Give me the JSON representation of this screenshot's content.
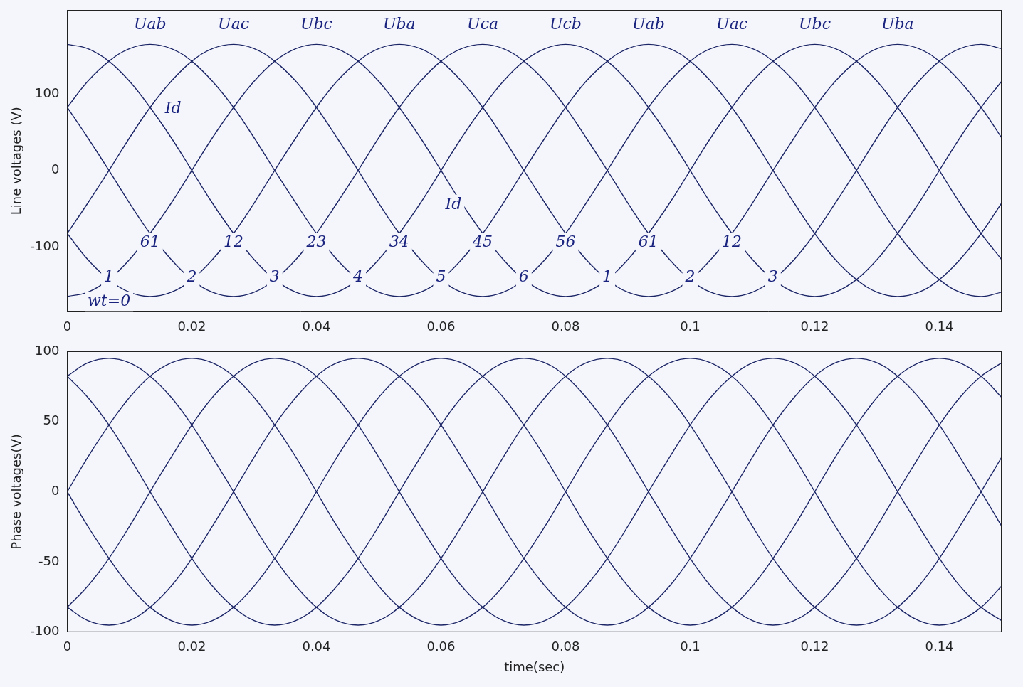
{
  "chart_data": [
    {
      "type": "line",
      "y_label": "Line voltages (V)",
      "x": [
        0,
        0.0033,
        0.0067,
        0.01,
        0.0133,
        0.0167,
        0.02,
        0.0233,
        0.0267,
        0.03,
        0.0333,
        0.0367,
        0.04,
        0.0433,
        0.0467,
        0.05,
        0.0533,
        0.0567,
        0.06,
        0.0633,
        0.0667,
        0.07,
        0.0733,
        0.0767,
        0.08,
        0.0833,
        0.0867,
        0.09,
        0.0933,
        0.0967,
        0.1,
        0.1033,
        0.1067,
        0.11,
        0.1133,
        0.1167,
        0.12,
        0.1233,
        0.1267,
        0.13,
        0.1333,
        0.1367,
        0.14,
        0.1433,
        0.1467,
        0.15
      ],
      "series": [
        {
          "color": "#1c2566",
          "values": [
            82.5,
            116.7,
            142.9,
            159.4,
            165,
            159.4,
            142.9,
            116.7,
            82.5,
            42.7,
            0,
            -42.7,
            -82.5,
            -116.7,
            -142.9,
            -159.4,
            -165,
            -159.4,
            -142.9,
            -116.7,
            -82.5,
            -42.7,
            0,
            42.7,
            82.5,
            116.7,
            142.9,
            159.4,
            165,
            159.4,
            142.9,
            116.7,
            82.5,
            42.7,
            0,
            -42.7,
            -82.5,
            -116.7,
            -142.9,
            -159.4,
            -165,
            -159.4,
            -142.9,
            -116.7,
            -82.5,
            -42.7
          ]
        },
        {
          "color": "#1c2566",
          "values": [
            -82.5,
            -42.7,
            0,
            42.7,
            82.5,
            116.7,
            142.9,
            159.4,
            165,
            159.4,
            142.9,
            116.7,
            82.5,
            42.7,
            0,
            -42.7,
            -82.5,
            -116.7,
            -142.9,
            -159.4,
            -165,
            -159.4,
            -142.9,
            -116.7,
            -82.5,
            -42.7,
            0,
            42.7,
            82.5,
            116.7,
            142.9,
            159.4,
            165,
            159.4,
            142.9,
            116.7,
            82.5,
            42.7,
            0,
            -42.7,
            -82.5,
            -116.7,
            -142.9,
            -159.4,
            -165,
            -159.4
          ]
        },
        {
          "color": "#1c2566",
          "values": [
            -165,
            -159.4,
            -142.9,
            -116.7,
            -82.5,
            -42.7,
            0,
            42.7,
            82.5,
            116.7,
            142.9,
            159.4,
            165,
            159.4,
            142.9,
            116.7,
            82.5,
            42.7,
            0,
            -42.7,
            -82.5,
            -116.7,
            -142.9,
            -159.4,
            -165,
            -159.4,
            -142.9,
            -116.7,
            -82.5,
            -42.7,
            0,
            42.7,
            82.5,
            116.7,
            142.9,
            159.4,
            165,
            159.4,
            142.9,
            116.7,
            82.5,
            42.7,
            0,
            -42.7,
            -82.5,
            -116.7
          ]
        },
        {
          "color": "#1c2566",
          "values": [
            -82.5,
            -116.7,
            -142.9,
            -159.4,
            -165,
            -159.4,
            -142.9,
            -116.7,
            -82.5,
            -42.7,
            0,
            42.7,
            82.5,
            116.7,
            142.9,
            159.4,
            165,
            159.4,
            142.9,
            116.7,
            82.5,
            42.7,
            0,
            -42.7,
            -82.5,
            -116.7,
            -142.9,
            -159.4,
            -165,
            -159.4,
            -142.9,
            -116.7,
            -82.5,
            -42.7,
            0,
            42.7,
            82.5,
            116.7,
            142.9,
            159.4,
            165,
            159.4,
            142.9,
            116.7,
            82.5,
            42.7
          ]
        },
        {
          "color": "#1c2566",
          "values": [
            82.5,
            42.7,
            0,
            -42.7,
            -82.5,
            -116.7,
            -142.9,
            -159.4,
            -165,
            -159.4,
            -142.9,
            -116.7,
            -82.5,
            -42.7,
            0,
            42.7,
            82.5,
            116.7,
            142.9,
            159.4,
            165,
            159.4,
            142.9,
            116.7,
            82.5,
            42.7,
            0,
            -42.7,
            -82.5,
            -116.7,
            -142.9,
            -159.4,
            -165,
            -159.4,
            -142.9,
            -116.7,
            -82.5,
            -42.7,
            0,
            42.7,
            82.5,
            116.7,
            142.9,
            159.4,
            165,
            159.4
          ]
        },
        {
          "color": "#1c2566",
          "values": [
            165,
            159.4,
            142.9,
            116.7,
            82.5,
            42.7,
            0,
            -42.7,
            -82.5,
            -116.7,
            -142.9,
            -159.4,
            -165,
            -159.4,
            -142.9,
            -116.7,
            -82.5,
            -42.7,
            0,
            42.7,
            82.5,
            116.7,
            142.9,
            159.4,
            165,
            159.4,
            142.9,
            116.7,
            82.5,
            42.7,
            0,
            -42.7,
            -82.5,
            -116.7,
            -142.9,
            -159.4,
            -165,
            -159.4,
            -142.9,
            -116.7,
            -82.5,
            -42.7,
            0,
            42.7,
            82.5,
            116.7
          ]
        }
      ],
      "xlim": [
        0,
        0.15
      ],
      "xticks": [
        0,
        0.02,
        0.04,
        0.06,
        0.08,
        0.1,
        0.12,
        0.14
      ],
      "ylim": [
        -185,
        210
      ],
      "yticks": [
        -100,
        0,
        100
      ],
      "grid": false,
      "annotations": [
        {
          "text": "Uab",
          "x": 0.0133,
          "y": 190
        },
        {
          "text": "Uac",
          "x": 0.0267,
          "y": 190
        },
        {
          "text": "Ubc",
          "x": 0.04,
          "y": 190
        },
        {
          "text": "Uba",
          "x": 0.0533,
          "y": 190
        },
        {
          "text": "Uca",
          "x": 0.0667,
          "y": 190
        },
        {
          "text": "Ucb",
          "x": 0.08,
          "y": 190
        },
        {
          "text": "Uab",
          "x": 0.0933,
          "y": 190
        },
        {
          "text": "Uac",
          "x": 0.1067,
          "y": 190
        },
        {
          "text": "Ubc",
          "x": 0.12,
          "y": 190
        },
        {
          "text": "Uba",
          "x": 0.1333,
          "y": 190
        },
        {
          "text": "Id",
          "x": 0.017,
          "y": 80
        },
        {
          "text": "Id",
          "x": 0.062,
          "y": -45
        },
        {
          "text": "61",
          "x": 0.0133,
          "y": -95
        },
        {
          "text": "12",
          "x": 0.0267,
          "y": -95
        },
        {
          "text": "23",
          "x": 0.04,
          "y": -95
        },
        {
          "text": "34",
          "x": 0.0533,
          "y": -95
        },
        {
          "text": "45",
          "x": 0.0667,
          "y": -95
        },
        {
          "text": "56",
          "x": 0.08,
          "y": -95
        },
        {
          "text": "61",
          "x": 0.0933,
          "y": -95
        },
        {
          "text": "12",
          "x": 0.1067,
          "y": -95
        },
        {
          "text": "1",
          "x": 0.0067,
          "y": -140
        },
        {
          "text": "2",
          "x": 0.02,
          "y": -140
        },
        {
          "text": "3",
          "x": 0.0333,
          "y": -140
        },
        {
          "text": "4",
          "x": 0.0467,
          "y": -140
        },
        {
          "text": "5",
          "x": 0.06,
          "y": -140
        },
        {
          "text": "6",
          "x": 0.0733,
          "y": -140
        },
        {
          "text": "1",
          "x": 0.0867,
          "y": -140
        },
        {
          "text": "2",
          "x": 0.1,
          "y": -140
        },
        {
          "text": "3",
          "x": 0.1133,
          "y": -140
        },
        {
          "text": "wt=0",
          "x": 0.0067,
          "y": -172
        }
      ]
    },
    {
      "type": "line",
      "y_label": "Phase voltages(V)",
      "x_label": "time(sec)",
      "x": [
        0,
        0.0033,
        0.0067,
        0.01,
        0.0133,
        0.0167,
        0.02,
        0.0233,
        0.0267,
        0.03,
        0.0333,
        0.0367,
        0.04,
        0.0433,
        0.0467,
        0.05,
        0.0533,
        0.0567,
        0.06,
        0.0633,
        0.0667,
        0.07,
        0.0733,
        0.0767,
        0.08,
        0.0833,
        0.0867,
        0.09,
        0.0933,
        0.0967,
        0.1,
        0.1033,
        0.1067,
        0.11,
        0.1133,
        0.1167,
        0.12,
        0.1233,
        0.1267,
        0.13,
        0.1333,
        0.1367,
        0.14,
        0.1433,
        0.1467,
        0.15
      ],
      "series": [
        {
          "color": "#1c2566",
          "values": [
            82.3,
            91.8,
            95,
            91.8,
            82.3,
            67.2,
            47.5,
            24.6,
            0,
            -24.6,
            -47.5,
            -67.2,
            -82.3,
            -91.8,
            -95,
            -91.8,
            -82.3,
            -67.2,
            -47.5,
            -24.6,
            0,
            24.6,
            47.5,
            67.2,
            82.3,
            91.8,
            95,
            91.8,
            82.3,
            67.2,
            47.5,
            24.6,
            0,
            -24.6,
            -47.5,
            -67.2,
            -82.3,
            -91.8,
            -95,
            -91.8,
            -82.3,
            -67.2,
            -47.5,
            -24.6,
            0,
            24.6
          ]
        },
        {
          "color": "#1c2566",
          "values": [
            0,
            24.6,
            47.5,
            67.2,
            82.3,
            91.8,
            95,
            91.8,
            82.3,
            67.2,
            47.5,
            24.6,
            0,
            -24.6,
            -47.5,
            -67.2,
            -82.3,
            -91.8,
            -95,
            -91.8,
            -82.3,
            -67.2,
            -47.5,
            -24.6,
            0,
            24.6,
            47.5,
            67.2,
            82.3,
            91.8,
            95,
            91.8,
            82.3,
            67.2,
            47.5,
            24.6,
            0,
            -24.6,
            -47.5,
            -67.2,
            -82.3,
            -91.8,
            -95,
            -91.8,
            -82.3,
            -67.2
          ]
        },
        {
          "color": "#1c2566",
          "values": [
            -82.3,
            -67.2,
            -47.5,
            -24.6,
            0,
            24.6,
            47.5,
            67.2,
            82.3,
            91.8,
            95,
            91.8,
            82.3,
            67.2,
            47.5,
            24.6,
            0,
            -24.6,
            -47.5,
            -67.2,
            -82.3,
            -91.8,
            -95,
            -91.8,
            -82.3,
            -67.2,
            -47.5,
            -24.6,
            0,
            24.6,
            47.5,
            67.2,
            82.3,
            91.8,
            95,
            91.8,
            82.3,
            67.2,
            47.5,
            24.6,
            0,
            -24.6,
            -47.5,
            -67.2,
            -82.3,
            -91.8
          ]
        },
        {
          "color": "#1c2566",
          "values": [
            -82.3,
            -91.8,
            -95,
            -91.8,
            -82.3,
            -67.2,
            -47.5,
            -24.6,
            0,
            24.6,
            47.5,
            67.2,
            82.3,
            91.8,
            95,
            91.8,
            82.3,
            67.2,
            47.5,
            24.6,
            0,
            -24.6,
            -47.5,
            -67.2,
            -82.3,
            -91.8,
            -95,
            -91.8,
            -82.3,
            -67.2,
            -47.5,
            -24.6,
            0,
            24.6,
            47.5,
            67.2,
            82.3,
            91.8,
            95,
            91.8,
            82.3,
            67.2,
            47.5,
            24.6,
            0,
            -24.6
          ]
        },
        {
          "color": "#1c2566",
          "values": [
            0,
            -24.6,
            -47.5,
            -67.2,
            -82.3,
            -91.8,
            -95,
            -91.8,
            -82.3,
            -67.2,
            -47.5,
            -24.6,
            0,
            24.6,
            47.5,
            67.2,
            82.3,
            91.8,
            95,
            91.8,
            82.3,
            67.2,
            47.5,
            24.6,
            0,
            -24.6,
            -47.5,
            -67.2,
            -82.3,
            -91.8,
            -95,
            -91.8,
            -82.3,
            -67.2,
            -47.5,
            -24.6,
            0,
            24.6,
            47.5,
            67.2,
            82.3,
            91.8,
            95,
            91.8,
            82.3,
            67.2
          ]
        },
        {
          "color": "#1c2566",
          "values": [
            82.3,
            67.2,
            47.5,
            24.6,
            0,
            -24.6,
            -47.5,
            -67.2,
            -82.3,
            -91.8,
            -95,
            -91.8,
            -82.3,
            -67.2,
            -47.5,
            -24.6,
            0,
            24.6,
            47.5,
            67.2,
            82.3,
            91.8,
            95,
            91.8,
            82.3,
            67.2,
            47.5,
            24.6,
            0,
            -24.6,
            -47.5,
            -67.2,
            -82.3,
            -91.8,
            -95,
            -91.8,
            -82.3,
            -67.2,
            -47.5,
            -24.6,
            0,
            24.6,
            47.5,
            67.2,
            82.3,
            91.8
          ]
        }
      ],
      "xlim": [
        0,
        0.15
      ],
      "xticks": [
        0,
        0.02,
        0.04,
        0.06,
        0.08,
        0.1,
        0.12,
        0.14
      ],
      "ylim": [
        -100,
        100
      ],
      "yticks": [
        -100,
        -50,
        0,
        50,
        100
      ],
      "grid": false
    }
  ]
}
